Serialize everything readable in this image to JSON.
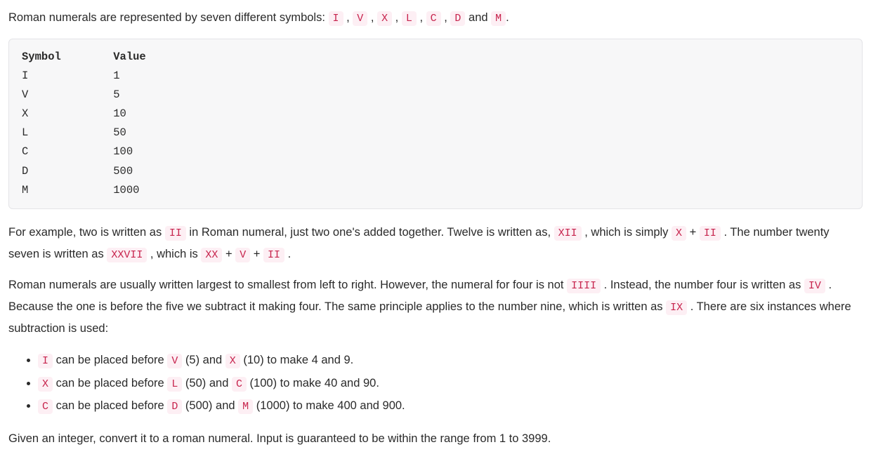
{
  "intro": {
    "lead": "Roman numerals are represented by seven different symbols: ",
    "symbols": [
      "I",
      "V",
      "X",
      "L",
      "C",
      "D",
      "M"
    ],
    "tail": "."
  },
  "table": {
    "header_symbol": "Symbol",
    "header_value": "Value",
    "rows": [
      {
        "sym": "I",
        "val": "1"
      },
      {
        "sym": "V",
        "val": "5"
      },
      {
        "sym": "X",
        "val": "10"
      },
      {
        "sym": "L",
        "val": "50"
      },
      {
        "sym": "C",
        "val": "100"
      },
      {
        "sym": "D",
        "val": "500"
      },
      {
        "sym": "M",
        "val": "1000"
      }
    ]
  },
  "p2": {
    "t0": "For example, two is written as ",
    "c0": "II",
    "t1": " in Roman numeral, just two one's added together. Twelve is written as, ",
    "c1": "XII",
    "t2": " , which is simply ",
    "c2": "X",
    "t3": " + ",
    "c3": "II",
    "t4": " . The number twenty seven is written as ",
    "c4": "XXVII",
    "t5": " , which is ",
    "c5": "XX",
    "t6": " + ",
    "c6": "V",
    "t7": " + ",
    "c7": "II",
    "t8": " ."
  },
  "p3": {
    "t0": "Roman numerals are usually written largest to smallest from left to right. However, the numeral for four is not ",
    "c0": "IIII",
    "t1": " . Instead, the number four is written as ",
    "c1": "IV",
    "t2": " . Because the one is before the five we subtract it making four. The same principle applies to the number nine, which is written as ",
    "c2": "IX",
    "t3": " . There are six instances where subtraction is used:"
  },
  "rules": [
    {
      "c0": "I",
      "t0": " can be placed before ",
      "c1": "V",
      "t1": " (5) and ",
      "c2": "X",
      "t2": " (10) to make 4 and 9."
    },
    {
      "c0": "X",
      "t0": " can be placed before ",
      "c1": "L",
      "t1": " (50) and ",
      "c2": "C",
      "t2": " (100) to make 40 and 90."
    },
    {
      "c0": "C",
      "t0": " can be placed before ",
      "c1": "D",
      "t1": " (500) and ",
      "c2": "M",
      "t2": " (1000) to make 400 and 900."
    }
  ],
  "p_final": "Given an integer, convert it to a roman numeral. Input is guaranteed to be within the range from 1 to 3999.",
  "sep_comma": " , ",
  "sep_and": " and "
}
